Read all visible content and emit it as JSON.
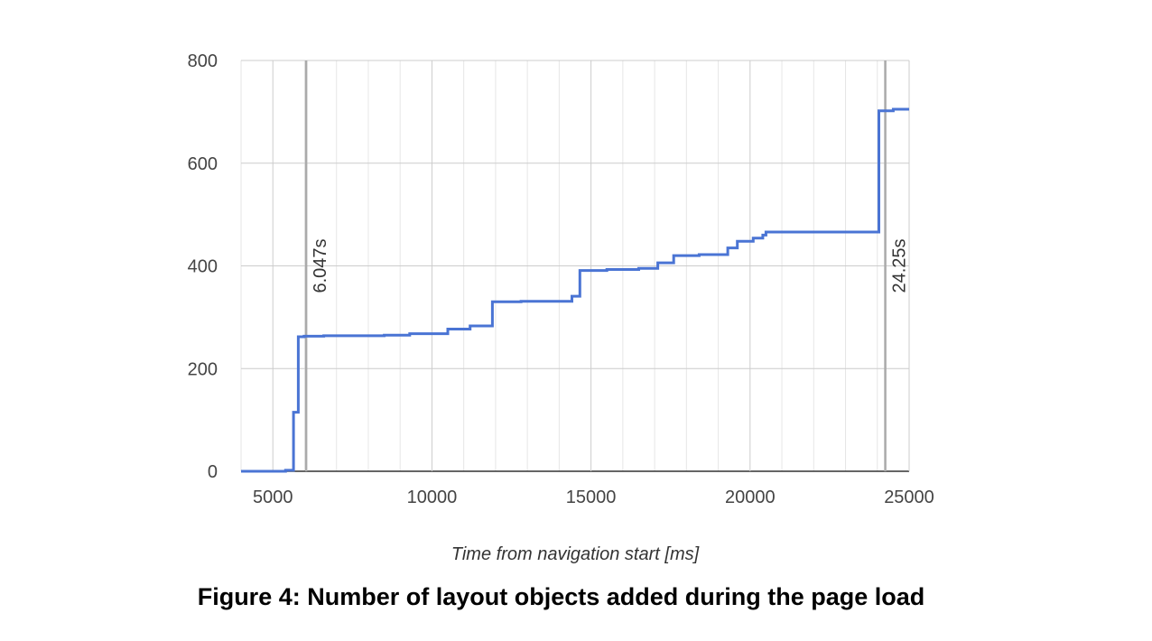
{
  "caption": "Figure 4: Number of layout objects added during the page load",
  "chart_data": {
    "type": "line",
    "step": true,
    "title": "",
    "xlabel": "Time from navigation start [ms]",
    "ylabel": "",
    "xlim": [
      4000,
      25000
    ],
    "ylim": [
      0,
      800
    ],
    "x_major_ticks": [
      5000,
      10000,
      15000,
      20000,
      25000
    ],
    "y_ticks": [
      0,
      200,
      400,
      600,
      800
    ],
    "grid": true,
    "line_color": "#4a74d4",
    "markers": [
      {
        "x": 6047,
        "label": "6.047s"
      },
      {
        "x": 24250,
        "label": "24.25s"
      }
    ],
    "series": [
      {
        "x": [
          4000,
          5400,
          5650,
          5800,
          5980,
          6600,
          8500,
          9300,
          10500,
          11200,
          11900,
          12800,
          14400,
          14650,
          15500,
          16500,
          17100,
          17600,
          18400,
          19300,
          19600,
          20100,
          20400,
          20500,
          24050,
          24500,
          25000
        ],
        "y": [
          0,
          2,
          115,
          262,
          263,
          264,
          265,
          268,
          277,
          283,
          330,
          331,
          341,
          391,
          393,
          395,
          406,
          420,
          422,
          435,
          448,
          454,
          460,
          466,
          702,
          705,
          705
        ]
      }
    ]
  }
}
